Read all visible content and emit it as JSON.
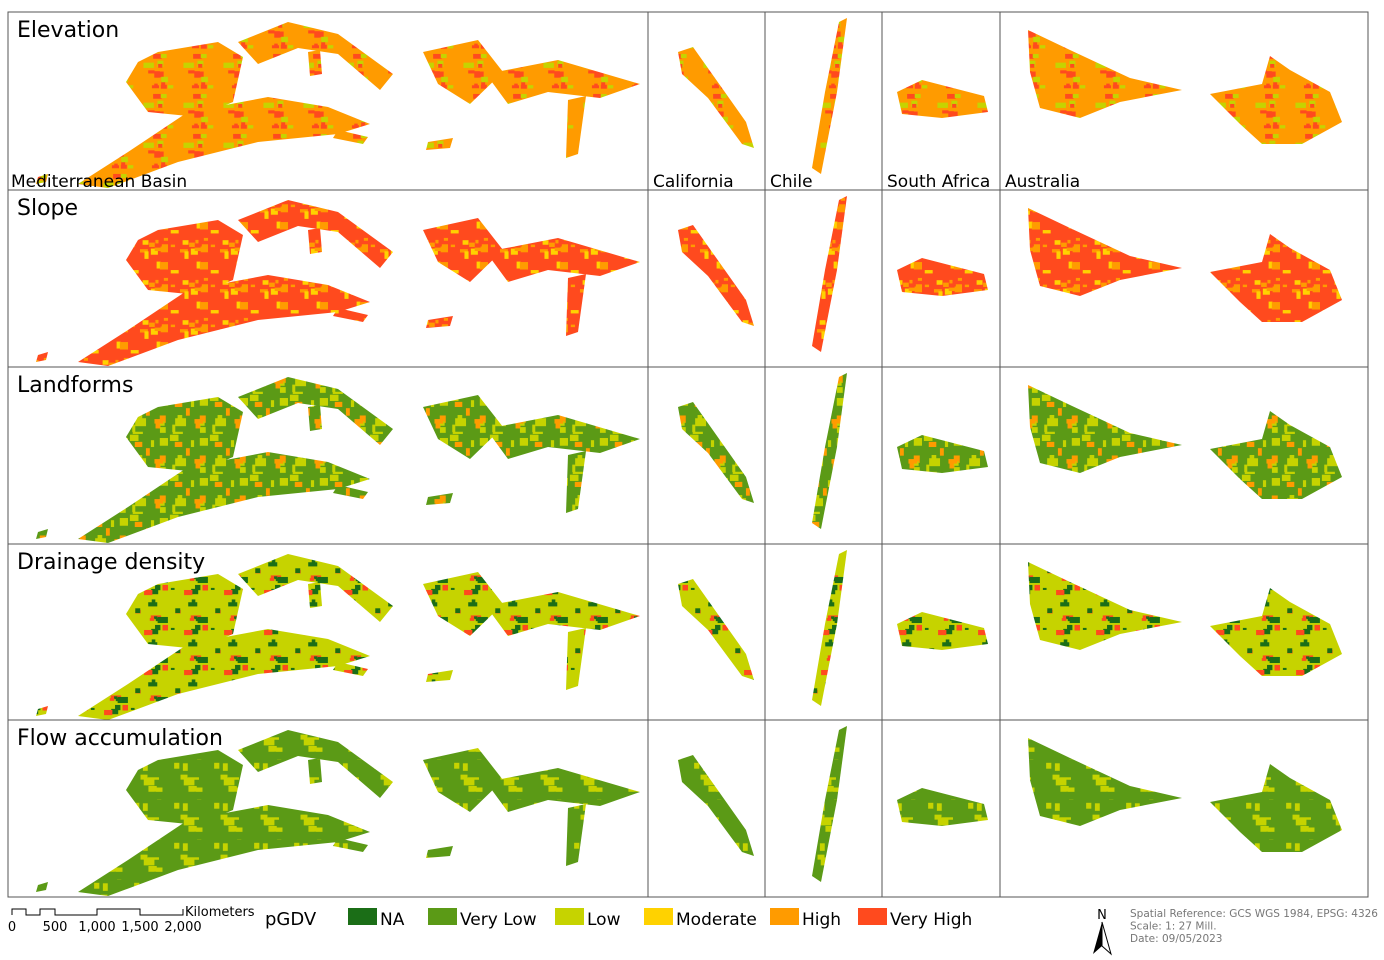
{
  "rows": [
    {
      "label": "Elevation"
    },
    {
      "label": "Slope"
    },
    {
      "label": "Landforms"
    },
    {
      "label": "Drainage density"
    },
    {
      "label": "Flow accumulation"
    }
  ],
  "regions": [
    "Mediterranean Basin",
    "California",
    "Chile",
    "South Africa",
    "Australia"
  ],
  "legend": {
    "title": "pGDV",
    "classes": [
      {
        "label": "NA",
        "color": "#1b6e17"
      },
      {
        "label": "Very Low",
        "color": "#5b9a16"
      },
      {
        "label": "Low",
        "color": "#c6d300"
      },
      {
        "label": "Moderate",
        "color": "#ffd200"
      },
      {
        "label": "High",
        "color": "#ff9b00"
      },
      {
        "label": "Very High",
        "color": "#ff4a1e"
      }
    ]
  },
  "scale_bar": {
    "labels": [
      "0",
      "500",
      "1,000",
      "1,500",
      "2,000"
    ],
    "unit": "Kilometers"
  },
  "north": "N",
  "info": [
    "Spatial Reference: GCS WGS 1984, EPSG: 4326",
    "Scale: 1: 27 Mill.",
    "Date: 09/05/2023"
  ]
}
